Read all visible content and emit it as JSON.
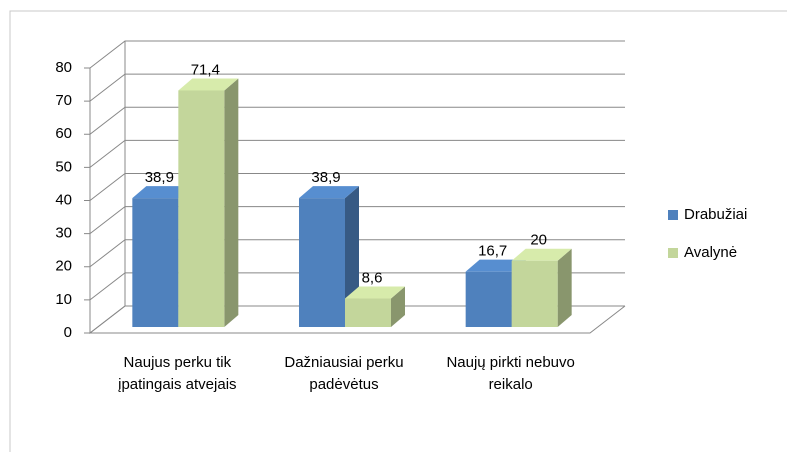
{
  "chart_data": {
    "type": "bar3d",
    "categories": [
      "Naujus perku tik įpatingais atvejais",
      "Dažniausiai perku padėvėtus",
      "Naujų pirkti nebuvo reikalo"
    ],
    "series": [
      {
        "name": "Drabužiai",
        "color": "#4f81bd",
        "values": [
          38.9,
          38.9,
          16.7
        ],
        "value_labels": [
          "38,9",
          "38,9",
          "16,7"
        ]
      },
      {
        "name": "Avalynė",
        "color": "#c3d69b",
        "values": [
          71.4,
          8.6,
          20
        ],
        "value_labels": [
          "71,4",
          "8,6",
          "20"
        ]
      }
    ],
    "ylim": [
      0,
      80
    ],
    "yticks": [
      0,
      10,
      20,
      30,
      40,
      50,
      60,
      70,
      80
    ],
    "grid": true,
    "legend": "right"
  }
}
